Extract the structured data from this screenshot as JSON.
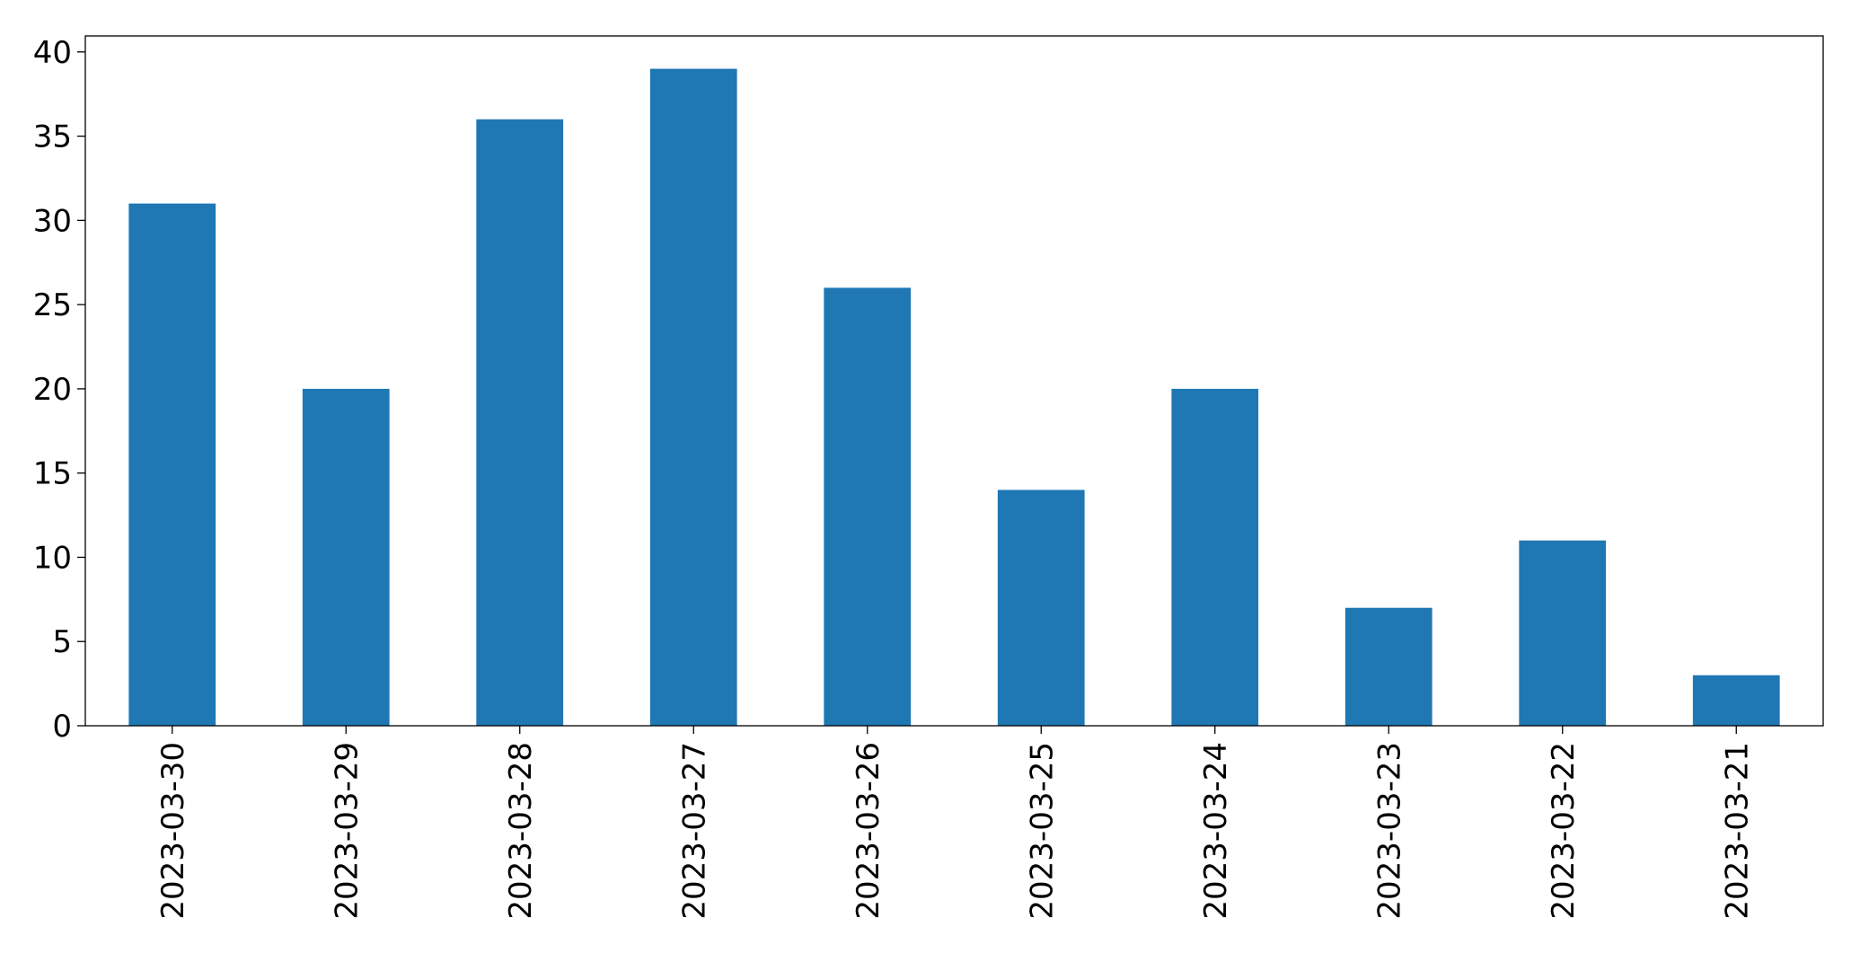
{
  "chart_data": {
    "type": "bar",
    "categories": [
      "2023-03-30",
      "2023-03-29",
      "2023-03-28",
      "2023-03-27",
      "2023-03-26",
      "2023-03-25",
      "2023-03-24",
      "2023-03-23",
      "2023-03-22",
      "2023-03-21"
    ],
    "values": [
      31,
      20,
      36,
      39,
      26,
      14,
      20,
      7,
      11,
      3
    ],
    "color": "#1f77b4",
    "ylim": [
      0,
      40.95
    ],
    "yticks": [
      0,
      5,
      10,
      15,
      20,
      25,
      30,
      35,
      40
    ],
    "grid": false
  }
}
